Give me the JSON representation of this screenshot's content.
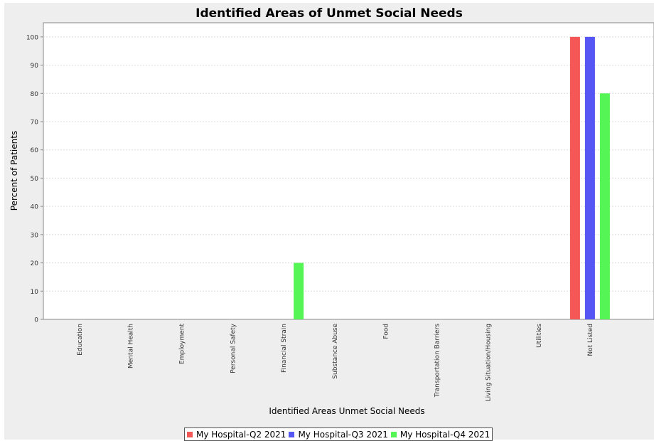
{
  "chart_data": {
    "type": "bar",
    "title": "Identified Areas of Unmet Social Needs",
    "xlabel": "Identified Areas Unmet Social Needs",
    "ylabel": "Percent of Patients",
    "ylim": [
      0,
      105
    ],
    "yticks": [
      0,
      10,
      20,
      30,
      40,
      50,
      60,
      70,
      80,
      90,
      100
    ],
    "grid": true,
    "legend_position": "bottom",
    "categories": [
      "Education",
      "Mental Health",
      "Employment",
      "Personal Safety",
      "Financial Strain",
      "Substance Abuse",
      "Food",
      "Transportation Barriers",
      "Living Situation/Housing",
      "Utilities",
      "Not Listed"
    ],
    "series": [
      {
        "name": "My Hospital-Q2 2021",
        "color": "#f55656",
        "values": [
          0,
          0,
          0,
          0,
          0,
          0,
          0,
          0,
          0,
          0,
          100
        ]
      },
      {
        "name": "My Hospital-Q3 2021",
        "color": "#5656f5",
        "values": [
          0,
          0,
          0,
          0,
          0,
          0,
          0,
          0,
          0,
          0,
          100
        ]
      },
      {
        "name": "My Hospital-Q4 2021",
        "color": "#56f556",
        "values": [
          0,
          0,
          0,
          0,
          20,
          0,
          0,
          0,
          0,
          0,
          80
        ]
      }
    ]
  }
}
